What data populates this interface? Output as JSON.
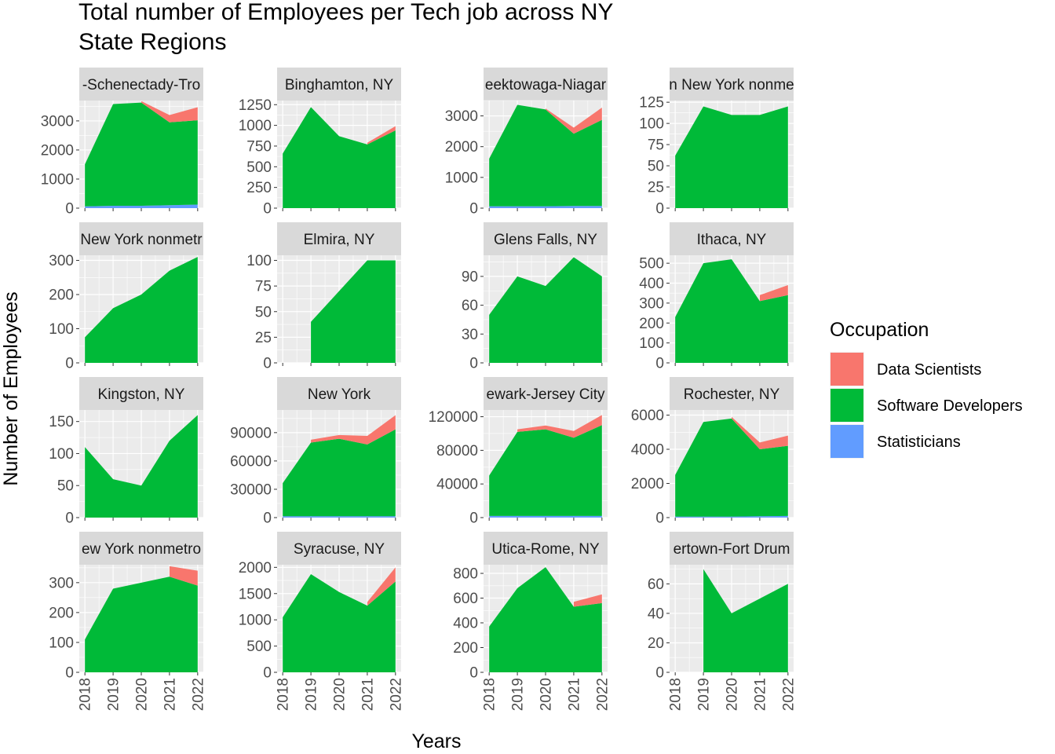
{
  "chart_data": {
    "type": "area",
    "title_lines": [
      "Total number of Employees per Tech job across NY",
      "State Regions"
    ],
    "xlabel": "Years",
    "ylabel": "Number of Employees",
    "x": [
      2018,
      2019,
      2020,
      2021,
      2022
    ],
    "x_tick_labels": [
      "2018",
      "2019",
      "2020",
      "2021",
      "2022"
    ],
    "stack_order_bottom_to_top": [
      "Statisticians",
      "Software Developers",
      "Data Scientists"
    ],
    "legend": {
      "title": "Occupation",
      "position": "right",
      "entries": [
        {
          "name": "Data Scientists",
          "color": "#F8766D"
        },
        {
          "name": "Software Developers",
          "color": "#00BA38"
        },
        {
          "name": "Statisticians",
          "color": "#619CFF"
        }
      ]
    },
    "panel_background": "#EBEBEB",
    "strip_background": "#D9D9D9",
    "grid_color": "#FFFFFF",
    "panels": [
      {
        "label": "-Schenectady-Tro",
        "ylim": [
          0,
          3700
        ],
        "yticks": [
          0,
          1000,
          2000,
          3000
        ],
        "ytick_labels": [
          "0",
          "1000",
          "2000",
          "3000"
        ],
        "series": {
          "Statisticians": [
            60,
            80,
            80,
            100,
            120
          ],
          "Software Developers": [
            1450,
            3500,
            3550,
            2850,
            2900
          ],
          "Data Scientists": [
            null,
            null,
            50,
            250,
            450
          ]
        }
      },
      {
        "label": "Binghamton, NY",
        "ylim": [
          0,
          1300
        ],
        "yticks": [
          0,
          250,
          500,
          750,
          1000,
          1250
        ],
        "ytick_labels": [
          "0",
          "250",
          "500",
          "750",
          "1000",
          "1250"
        ],
        "series": {
          "Statisticians": [
            null,
            null,
            null,
            null,
            null
          ],
          "Software Developers": [
            660,
            1220,
            870,
            770,
            940
          ],
          "Data Scientists": [
            null,
            null,
            null,
            20,
            50
          ]
        }
      },
      {
        "label": "eektowaga-Niagar",
        "ylim": [
          0,
          3500
        ],
        "yticks": [
          0,
          1000,
          2000,
          3000
        ],
        "ytick_labels": [
          "0",
          "1000",
          "2000",
          "3000"
        ],
        "series": {
          "Statisticians": [
            60,
            60,
            60,
            70,
            70
          ],
          "Software Developers": [
            1550,
            3300,
            3150,
            2350,
            2800
          ],
          "Data Scientists": [
            null,
            null,
            30,
            200,
            400
          ]
        }
      },
      {
        "label": "n New York nonme",
        "ylim": [
          0,
          127
        ],
        "yticks": [
          0,
          25,
          50,
          75,
          100,
          125
        ],
        "ytick_labels": [
          "0",
          "25",
          "50",
          "75",
          "100",
          "125"
        ],
        "series": {
          "Statisticians": [
            null,
            null,
            null,
            null,
            null
          ],
          "Software Developers": [
            62,
            120,
            110,
            110,
            120
          ],
          "Data Scientists": [
            null,
            null,
            null,
            null,
            null
          ]
        }
      },
      {
        "label": "New York nonmetr",
        "ylim": [
          0,
          315
        ],
        "yticks": [
          0,
          100,
          200,
          300
        ],
        "ytick_labels": [
          "0",
          "100",
          "200",
          "300"
        ],
        "series": {
          "Statisticians": [
            null,
            null,
            null,
            null,
            null
          ],
          "Software Developers": [
            75,
            160,
            200,
            270,
            310
          ],
          "Data Scientists": [
            null,
            null,
            null,
            null,
            null
          ]
        }
      },
      {
        "label": "Elmira, NY",
        "ylim": [
          0,
          105
        ],
        "yticks": [
          0,
          25,
          50,
          75,
          100
        ],
        "ytick_labels": [
          "0",
          "25",
          "50",
          "75",
          "100"
        ],
        "series": {
          "Statisticians": [
            null,
            null,
            null,
            null,
            null
          ],
          "Software Developers": [
            null,
            40,
            70,
            100,
            100
          ],
          "Data Scientists": [
            null,
            null,
            null,
            null,
            null
          ]
        }
      },
      {
        "label": "Glens Falls, NY",
        "ylim": [
          0,
          112
        ],
        "yticks": [
          0,
          30,
          60,
          90
        ],
        "ytick_labels": [
          "0",
          "30",
          "60",
          "90"
        ],
        "series": {
          "Statisticians": [
            null,
            null,
            null,
            null,
            null
          ],
          "Software Developers": [
            50,
            90,
            80,
            110,
            90
          ],
          "Data Scientists": [
            null,
            null,
            null,
            null,
            null
          ]
        }
      },
      {
        "label": "Ithaca, NY",
        "ylim": [
          0,
          540
        ],
        "yticks": [
          0,
          100,
          200,
          300,
          400,
          500
        ],
        "ytick_labels": [
          "0",
          "100",
          "200",
          "300",
          "400",
          "500"
        ],
        "series": {
          "Statisticians": [
            null,
            null,
            null,
            null,
            null
          ],
          "Software Developers": [
            230,
            500,
            520,
            310,
            340
          ],
          "Data Scientists": [
            null,
            null,
            null,
            30,
            50
          ]
        }
      },
      {
        "label": "Kingston, NY",
        "ylim": [
          0,
          168
        ],
        "yticks": [
          0,
          50,
          100,
          150
        ],
        "ytick_labels": [
          "0",
          "50",
          "100",
          "150"
        ],
        "series": {
          "Statisticians": [
            null,
            null,
            null,
            null,
            null
          ],
          "Software Developers": [
            110,
            60,
            50,
            120,
            160
          ],
          "Data Scientists": [
            null,
            null,
            null,
            null,
            null
          ]
        }
      },
      {
        "label": "New York",
        "ylim": [
          0,
          114000
        ],
        "yticks": [
          0,
          30000,
          60000,
          90000
        ],
        "ytick_labels": [
          "0",
          "30000",
          "60000",
          "90000"
        ],
        "series": {
          "Statisticians": [
            1500,
            1500,
            1500,
            1500,
            1500
          ],
          "Software Developers": [
            35000,
            78000,
            82000,
            76000,
            92000
          ],
          "Data Scientists": [
            null,
            3000,
            4000,
            9000,
            15000
          ]
        }
      },
      {
        "label": "ewark-Jersey City",
        "ylim": [
          0,
          128000
        ],
        "yticks": [
          0,
          40000,
          80000,
          120000
        ],
        "ytick_labels": [
          "0",
          "40000",
          "80000",
          "120000"
        ],
        "series": {
          "Statisticians": [
            2000,
            2000,
            2000,
            2000,
            2000
          ],
          "Software Developers": [
            48000,
            100000,
            103000,
            93000,
            108000
          ],
          "Data Scientists": [
            null,
            3000,
            4500,
            8000,
            12000
          ]
        }
      },
      {
        "label": "Rochester, NY",
        "ylim": [
          0,
          6300
        ],
        "yticks": [
          0,
          2000,
          4000,
          6000
        ],
        "ytick_labels": [
          "0",
          "2000",
          "4000",
          "6000"
        ],
        "series": {
          "Statisticians": [
            60,
            60,
            60,
            80,
            100
          ],
          "Software Developers": [
            2440,
            5540,
            5740,
            3920,
            4100
          ],
          "Data Scientists": [
            null,
            null,
            100,
            400,
            600
          ]
        }
      },
      {
        "label": "ew York nonmetro",
        "ylim": [
          0,
          360
        ],
        "yticks": [
          0,
          100,
          200,
          300
        ],
        "ytick_labels": [
          "0",
          "100",
          "200",
          "300"
        ],
        "series": {
          "Statisticians": [
            null,
            null,
            null,
            null,
            null
          ],
          "Software Developers": [
            110,
            280,
            300,
            320,
            290
          ],
          "Data Scientists": [
            null,
            null,
            null,
            35,
            50
          ]
        }
      },
      {
        "label": "Syracuse, NY",
        "ylim": [
          0,
          2050
        ],
        "yticks": [
          0,
          500,
          1000,
          1500,
          2000
        ],
        "ytick_labels": [
          "0",
          "500",
          "1000",
          "1500",
          "2000"
        ],
        "series": {
          "Statisticians": [
            null,
            null,
            null,
            null,
            null
          ],
          "Software Developers": [
            1050,
            1870,
            1530,
            1270,
            1730
          ],
          "Data Scientists": [
            null,
            null,
            null,
            70,
            270
          ]
        }
      },
      {
        "label": "Utica-Rome, NY",
        "ylim": [
          0,
          870
        ],
        "yticks": [
          0,
          200,
          400,
          600,
          800
        ],
        "ytick_labels": [
          "0",
          "200",
          "400",
          "600",
          "800"
        ],
        "series": {
          "Statisticians": [
            null,
            null,
            null,
            null,
            null
          ],
          "Software Developers": [
            370,
            680,
            850,
            530,
            560
          ],
          "Data Scientists": [
            null,
            null,
            null,
            40,
            70
          ]
        }
      },
      {
        "label": "ertown-Fort Drum",
        "ylim": [
          0,
          73
        ],
        "yticks": [
          0,
          20,
          40,
          60
        ],
        "ytick_labels": [
          "0",
          "20",
          "40",
          "60"
        ],
        "series": {
          "Statisticians": [
            null,
            null,
            null,
            null,
            null
          ],
          "Software Developers": [
            null,
            70,
            40,
            50,
            60
          ],
          "Data Scientists": [
            null,
            null,
            null,
            null,
            null
          ]
        }
      }
    ]
  }
}
